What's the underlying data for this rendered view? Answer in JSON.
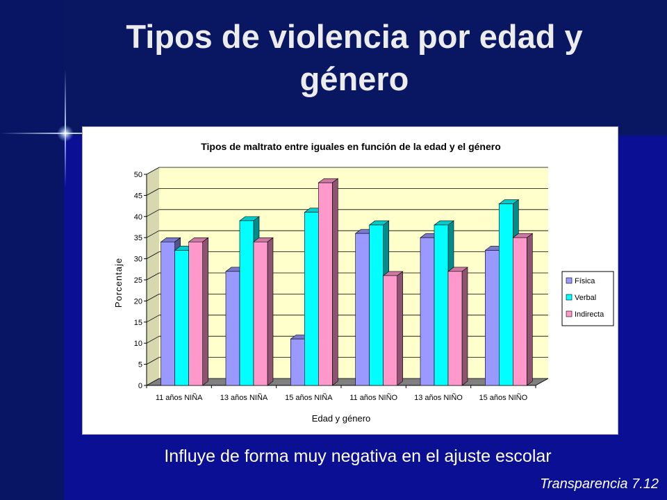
{
  "slide": {
    "title": "Tipos de violencia por edad y género",
    "subtitle": "Influye de forma muy negativa en el ajuste escolar",
    "footer": "Transparencia 7.12"
  },
  "chart_data": {
    "type": "bar",
    "title": "Tipos de maltrato entre iguales en función de la edad y el género",
    "xlabel": "Edad y género",
    "ylabel": "Porcentaje",
    "categories": [
      "11 años NIÑA",
      "13 años NIÑA",
      "15 años NIÑA",
      "11 años NIÑO",
      "13 años NIÑO",
      "15 años NIÑO"
    ],
    "series": [
      {
        "name": "Física",
        "values": [
          34,
          27,
          11,
          36,
          35,
          32
        ],
        "color": "#9999FF"
      },
      {
        "name": "Verbal",
        "values": [
          32,
          39,
          41,
          38,
          38,
          43
        ],
        "color": "#00FFFF"
      },
      {
        "name": "Indirecta",
        "values": [
          34,
          34,
          48,
          26,
          27,
          35
        ],
        "color": "#FF99CC"
      }
    ],
    "ylim": [
      0,
      50
    ],
    "yticks": [
      0,
      5,
      10,
      15,
      20,
      25,
      30,
      35,
      40,
      45,
      50
    ],
    "grid": true,
    "legend": "right",
    "style": "3d-clustered-column",
    "wall_color": "#FFFFCC"
  }
}
